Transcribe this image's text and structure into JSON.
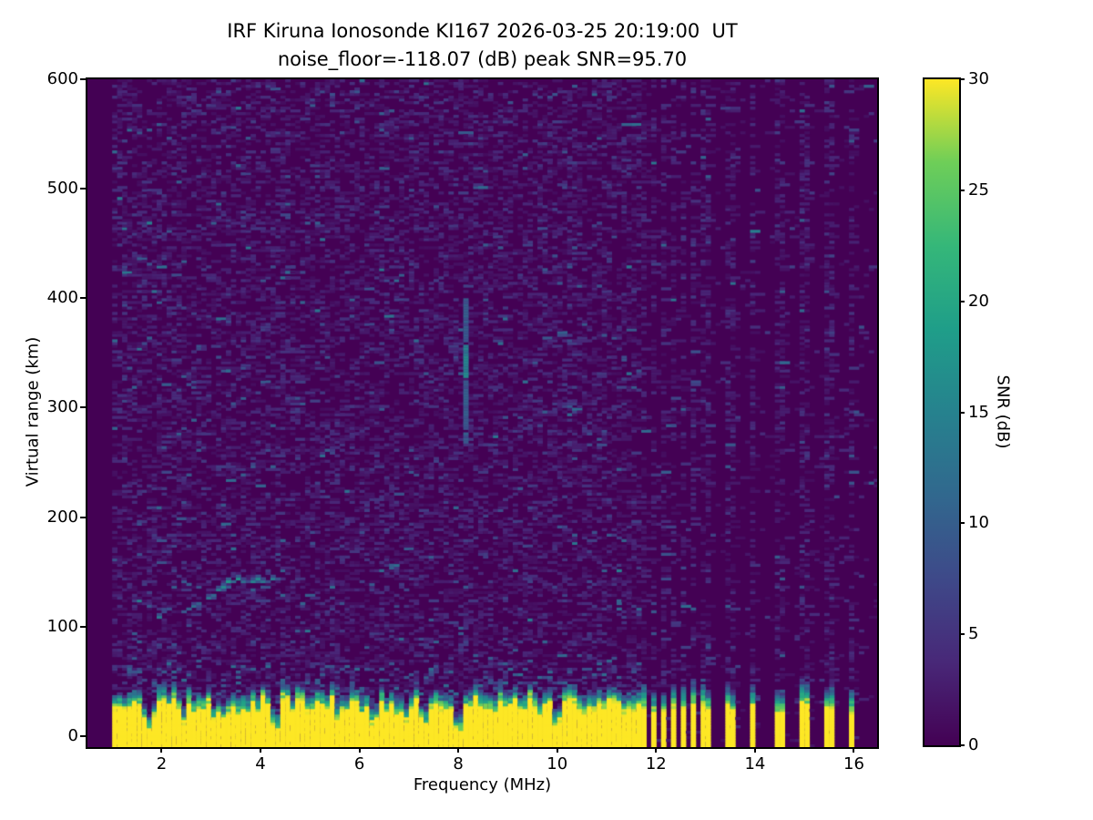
{
  "title": {
    "line1": "IRF Kiruna Ionosonde KI167 2026-03-25 20:19:00  UT",
    "line2": "noise_floor=-118.07 (dB) peak SNR=95.70"
  },
  "axes": {
    "xlabel": "Frequency (MHz)",
    "ylabel": "Virtual range (km)",
    "xlim": [
      0.5,
      16.47
    ],
    "ylim": [
      -10,
      600
    ],
    "x_ticks": [
      2,
      4,
      6,
      8,
      10,
      12,
      14,
      16
    ],
    "y_ticks": [
      0,
      100,
      200,
      300,
      400,
      500,
      600
    ]
  },
  "colorbar": {
    "label": "SNR (dB)",
    "min": 0,
    "max": 30,
    "ticks": [
      0,
      5,
      10,
      15,
      20,
      25,
      30
    ],
    "stops": [
      "#440154",
      "#482878",
      "#3e4989",
      "#31688e",
      "#26828e",
      "#1f9e89",
      "#35b779",
      "#6ece58",
      "#fde725"
    ]
  },
  "chart_data": {
    "type": "heatmap",
    "title": "IRF Kiruna Ionosonde KI167 2026-03-25 20:19:00  UT",
    "subtitle": "noise_floor=-118.07 (dB) peak SNR=95.70",
    "station": "KI167",
    "site": "IRF Kiruna",
    "timestamp_ut": "2026-03-25 20:19:00",
    "noise_floor_db": -118.07,
    "peak_snr_db": 95.7,
    "xlabel": "Frequency (MHz)",
    "ylabel": "Virtual range (km)",
    "value_label": "SNR (dB)",
    "colormap": "viridis",
    "clim": [
      0,
      30
    ],
    "x_range_mhz": [
      1.0,
      16.4
    ],
    "x_step_mhz": 0.1,
    "y_range_km": [
      -10,
      600
    ],
    "y_step_km": 2.5,
    "grid": false,
    "legend": false,
    "features": {
      "noise_field": {
        "style": "sparse horizontal speckle dashes",
        "fill_prob_below_11_6": 0.4,
        "fill_prob_quiet_above": 0.045,
        "typical_db": [
          1,
          7
        ],
        "rare_max_db": 13
      },
      "ground_echo_band": {
        "f_mhz": [
          1.0,
          11.62
        ],
        "solid_top_km_mean": 27,
        "solid_top_km_jitter": 8,
        "transition_thickness_km": 15,
        "solid_db": 30,
        "notch_freqs_mhz": [
          1.7,
          2.35,
          3.1,
          3.7,
          4.25,
          5.0,
          5.6,
          6.25,
          6.85,
          7.3,
          7.95,
          8.6,
          9.6,
          9.95,
          10.6,
          11.3
        ],
        "notch_depth_km": [
          20,
          9,
          15,
          11,
          13,
          9,
          8,
          18,
          13,
          15,
          17,
          9,
          15,
          13,
          7,
          11
        ]
      },
      "transmitter_stripes": {
        "dense_f_mhz": [
          11.72,
          11.92,
          12.13,
          12.33,
          12.54,
          12.74,
          12.95
        ],
        "sparse_f_mhz": [
          13.45,
          13.9,
          14.45,
          14.95,
          15.45,
          15.9
        ],
        "top_km_mean": 24,
        "top_km_jitter": 7,
        "transition_thickness_km": 20,
        "db": 30,
        "noisy_column_prob": 0.42
      },
      "echo_trace_points": [
        [
          1.9,
          110,
          8
        ],
        [
          2.0,
          112,
          7
        ],
        [
          2.15,
          114,
          8
        ],
        [
          2.4,
          113,
          9
        ],
        [
          2.5,
          116,
          10
        ],
        [
          2.6,
          118,
          12
        ],
        [
          2.7,
          121,
          10
        ],
        [
          2.85,
          124,
          13
        ],
        [
          3.0,
          128,
          11
        ],
        [
          3.1,
          132,
          14
        ],
        [
          3.2,
          136,
          16
        ],
        [
          3.3,
          140,
          18
        ],
        [
          3.45,
          143,
          17
        ],
        [
          3.6,
          139,
          12
        ],
        [
          3.75,
          141,
          15
        ],
        [
          3.9,
          143,
          16
        ],
        [
          4.05,
          140,
          13
        ],
        [
          4.2,
          142,
          14
        ]
      ],
      "vertical_streak": {
        "f_mhz": 8.05,
        "km_range": [
          268,
          400
        ],
        "db": 9,
        "bright_km_range": [
          325,
          360
        ],
        "bright_db": 14
      }
    }
  }
}
